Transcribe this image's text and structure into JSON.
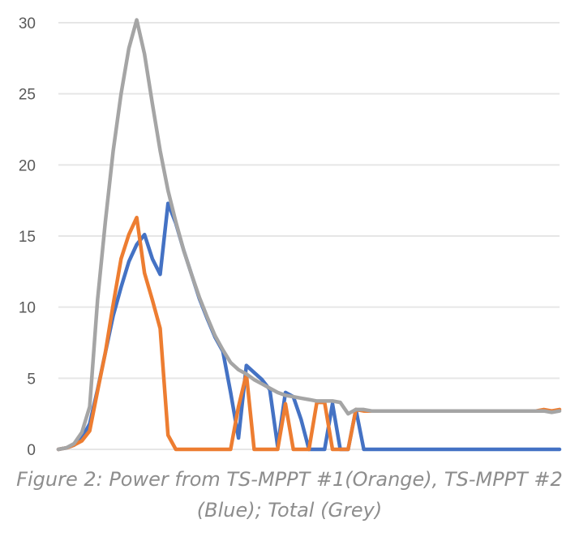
{
  "chart_data": {
    "type": "line",
    "title": "",
    "xlabel": "",
    "ylabel": "",
    "ylim": [
      0,
      30
    ],
    "yticks": [
      "0",
      "5",
      "10",
      "15",
      "20",
      "25",
      "30"
    ],
    "grid": true,
    "legend": "none",
    "x": [
      0,
      1,
      2,
      3,
      4,
      5,
      6,
      7,
      8,
      9,
      10,
      11,
      12,
      13,
      14,
      15,
      16,
      17,
      18,
      19,
      20,
      21,
      22,
      23,
      24,
      25,
      26,
      27,
      28,
      29,
      30,
      31,
      32,
      33,
      34,
      35,
      36,
      37,
      38,
      39,
      40,
      41,
      42,
      43,
      44,
      45,
      46,
      47,
      48,
      49,
      50,
      51,
      52,
      53,
      54,
      55,
      56,
      57,
      58,
      59,
      60,
      61,
      62,
      63,
      64
    ],
    "series": [
      {
        "color": "#4472c4",
        "values": [
          0.0,
          0.1,
          0.3,
          0.8,
          1.8,
          4.2,
          6.8,
          9.4,
          11.4,
          13.2,
          14.4,
          15.1,
          13.4,
          12.3,
          17.3,
          15.9,
          14.0,
          12.3,
          10.6,
          9.2,
          7.9,
          6.9,
          4.0,
          0.8,
          5.9,
          5.4,
          4.9,
          4.2,
          0.2,
          4.0,
          3.7,
          2.1,
          0.0,
          0.0,
          0.0,
          3.2,
          0.0,
          0.0,
          2.8,
          0.0,
          0.0,
          0.0,
          0.0,
          0.0,
          0.0,
          0.0,
          0.0,
          0.0,
          0.0,
          0.0,
          0.0,
          0.0,
          0.0,
          0.0,
          0.0,
          0.0,
          0.0,
          0.0,
          0.0,
          0.0,
          0.0,
          0.0,
          0.0,
          0.0,
          0.0
        ]
      },
      {
        "color": "#ed7d31",
        "values": [
          0.0,
          0.1,
          0.3,
          0.6,
          1.3,
          4.1,
          6.8,
          10.2,
          13.4,
          15.1,
          16.3,
          12.4,
          10.5,
          8.5,
          1.0,
          0.0,
          0.0,
          0.0,
          0.0,
          0.0,
          0.0,
          0.0,
          0.0,
          3.0,
          5.3,
          0.0,
          0.0,
          0.0,
          0.0,
          3.2,
          0.0,
          0.0,
          0.0,
          3.3,
          3.3,
          0.0,
          0.0,
          0.0,
          2.8,
          2.7,
          2.7,
          2.7,
          2.7,
          2.7,
          2.7,
          2.7,
          2.7,
          2.7,
          2.7,
          2.7,
          2.7,
          2.7,
          2.7,
          2.7,
          2.7,
          2.7,
          2.7,
          2.7,
          2.7,
          2.7,
          2.7,
          2.7,
          2.8,
          2.7,
          2.8
        ]
      },
      {
        "color": "#a5a5a5",
        "values": [
          0.0,
          0.1,
          0.4,
          1.2,
          3.0,
          10.5,
          16.0,
          21.0,
          25.0,
          28.2,
          30.2,
          27.8,
          24.3,
          21.0,
          18.2,
          16.0,
          14.0,
          12.3,
          10.7,
          9.3,
          8.0,
          7.0,
          6.1,
          5.6,
          5.3,
          4.9,
          4.6,
          4.3,
          4.0,
          3.8,
          3.7,
          3.6,
          3.5,
          3.4,
          3.4,
          3.4,
          3.3,
          2.5,
          2.8,
          2.8,
          2.7,
          2.7,
          2.7,
          2.7,
          2.7,
          2.7,
          2.7,
          2.7,
          2.7,
          2.7,
          2.7,
          2.7,
          2.7,
          2.7,
          2.7,
          2.7,
          2.7,
          2.7,
          2.7,
          2.7,
          2.7,
          2.7,
          2.7,
          2.6,
          2.7
        ]
      }
    ]
  },
  "caption": {
    "line1": "Figure 2: Power from TS-MPPT #1(Orange), TS-MPPT #2",
    "line2": "(Blue); Total (Grey)"
  }
}
